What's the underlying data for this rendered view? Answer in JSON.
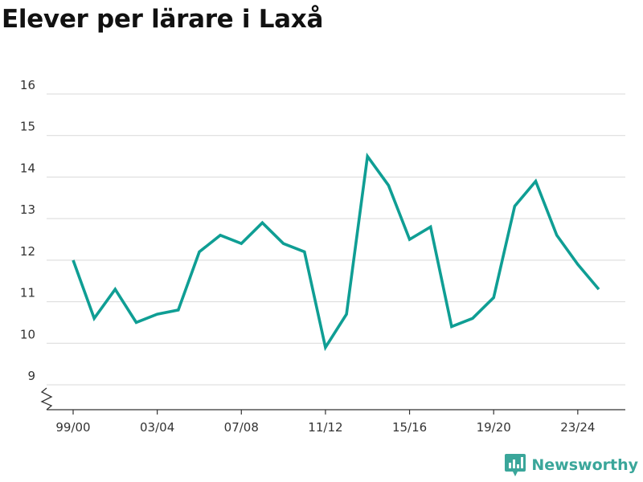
{
  "header": {
    "title": "Elever per lärare i Laxå"
  },
  "brand": {
    "name": "Newsworthy",
    "icon": "bar-chart-logo-icon",
    "color": "#3aa69a"
  },
  "chart_data": {
    "type": "line",
    "title": "Elever per lärare i Laxå",
    "xlabel": "",
    "ylabel": "",
    "ylim": [
      9,
      16
    ],
    "y_ticks": [
      9,
      10,
      11,
      12,
      13,
      14,
      15,
      16
    ],
    "y_tick_labels": [
      "9",
      "10",
      "11",
      "12",
      "13",
      "14",
      "15",
      "16"
    ],
    "y_axis_break": true,
    "grid": true,
    "x_tick_labels": [
      "99/00",
      "03/04",
      "07/08",
      "11/12",
      "15/16",
      "19/20",
      "23/24"
    ],
    "x_tick_index": [
      0,
      4,
      8,
      12,
      16,
      20,
      24
    ],
    "color": "#0f9e94",
    "series": [
      {
        "values": [
          12.0,
          10.6,
          11.3,
          10.5,
          10.7,
          10.8,
          12.2,
          12.6,
          12.4,
          12.9,
          12.4,
          12.2,
          9.9,
          10.7,
          14.5,
          13.8,
          12.5,
          12.8,
          10.4,
          10.6,
          11.1,
          13.3,
          13.9,
          12.6,
          11.9,
          11.3
        ]
      }
    ]
  }
}
